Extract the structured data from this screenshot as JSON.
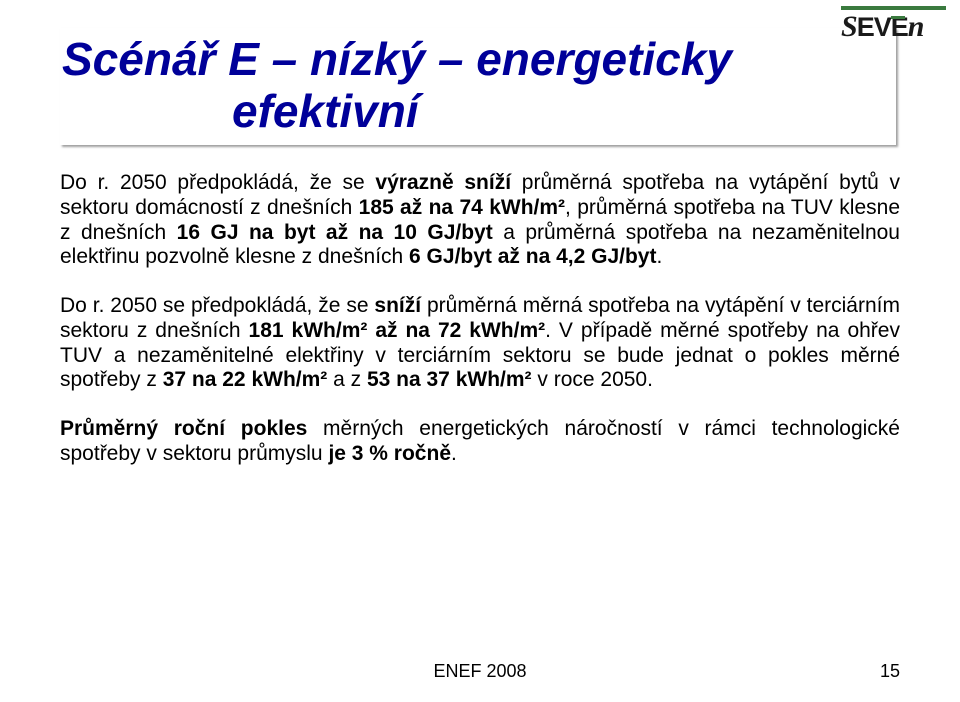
{
  "colors": {
    "background": "#ffffff",
    "title_color": "#000099",
    "text_color": "#000000",
    "logo_green": "#3a7a3e",
    "shadow": "rgba(120,120,120,0.7)"
  },
  "typography": {
    "title_fontsize": 46,
    "title_style": "italic bold",
    "body_fontsize": 21,
    "footer_fontsize": 18,
    "font_family": "Arial"
  },
  "logo": {
    "text_parts": [
      "S",
      "E",
      "V",
      "E",
      "n"
    ],
    "label": "SEVEn"
  },
  "title": {
    "line1": "Scénář E – nízký – energeticky",
    "line2": "efektivní"
  },
  "paragraphs": {
    "p1_pre": "Do r. 2050 předpokládá, že se ",
    "p1_b1": "výrazně sníží",
    "p1_mid1": " průměrná spotřeba na vytápění bytů v sektoru domácností z dnešních ",
    "p1_b2": "185 až na 74 kWh/m²",
    "p1_mid2": ", průměrná spotřeba na TUV klesne z dnešních ",
    "p1_b3": "16 GJ na byt až na 10 GJ/byt",
    "p1_mid3": " a průměrná spotřeba na nezaměnitelnou elektřinu pozvolně klesne z dnešních ",
    "p1_b4": "6 GJ/byt až na 4,2 GJ/byt",
    "p1_end": ".",
    "p2_pre": "Do r. 2050 se předpokládá, že se ",
    "p2_b1": "sníží",
    "p2_mid1": " průměrná měrná spotřeba na vytápění v terciárním sektoru z dnešních ",
    "p2_b2": "181 kWh/m² až na 72 kWh/m²",
    "p2_mid2": ". V případě měrné spotřeby na ohřev TUV a nezaměnitelné elektřiny v terciárním sektoru se bude jednat o pokles měrné spotřeby z ",
    "p2_b3": "37 na 22 kWh/m²",
    "p2_mid3": " a z ",
    "p2_b4": "53 na 37 kWh/m²",
    "p2_end": " v roce 2050.",
    "p3_b1": "Průměrný roční pokles",
    "p3_mid": " měrných energetických náročností v rámci technologické spotřeby v sektoru průmyslu ",
    "p3_b2": "je 3 % ročně",
    "p3_end": "."
  },
  "footer": {
    "text": "ENEF 2008",
    "page": "15"
  }
}
